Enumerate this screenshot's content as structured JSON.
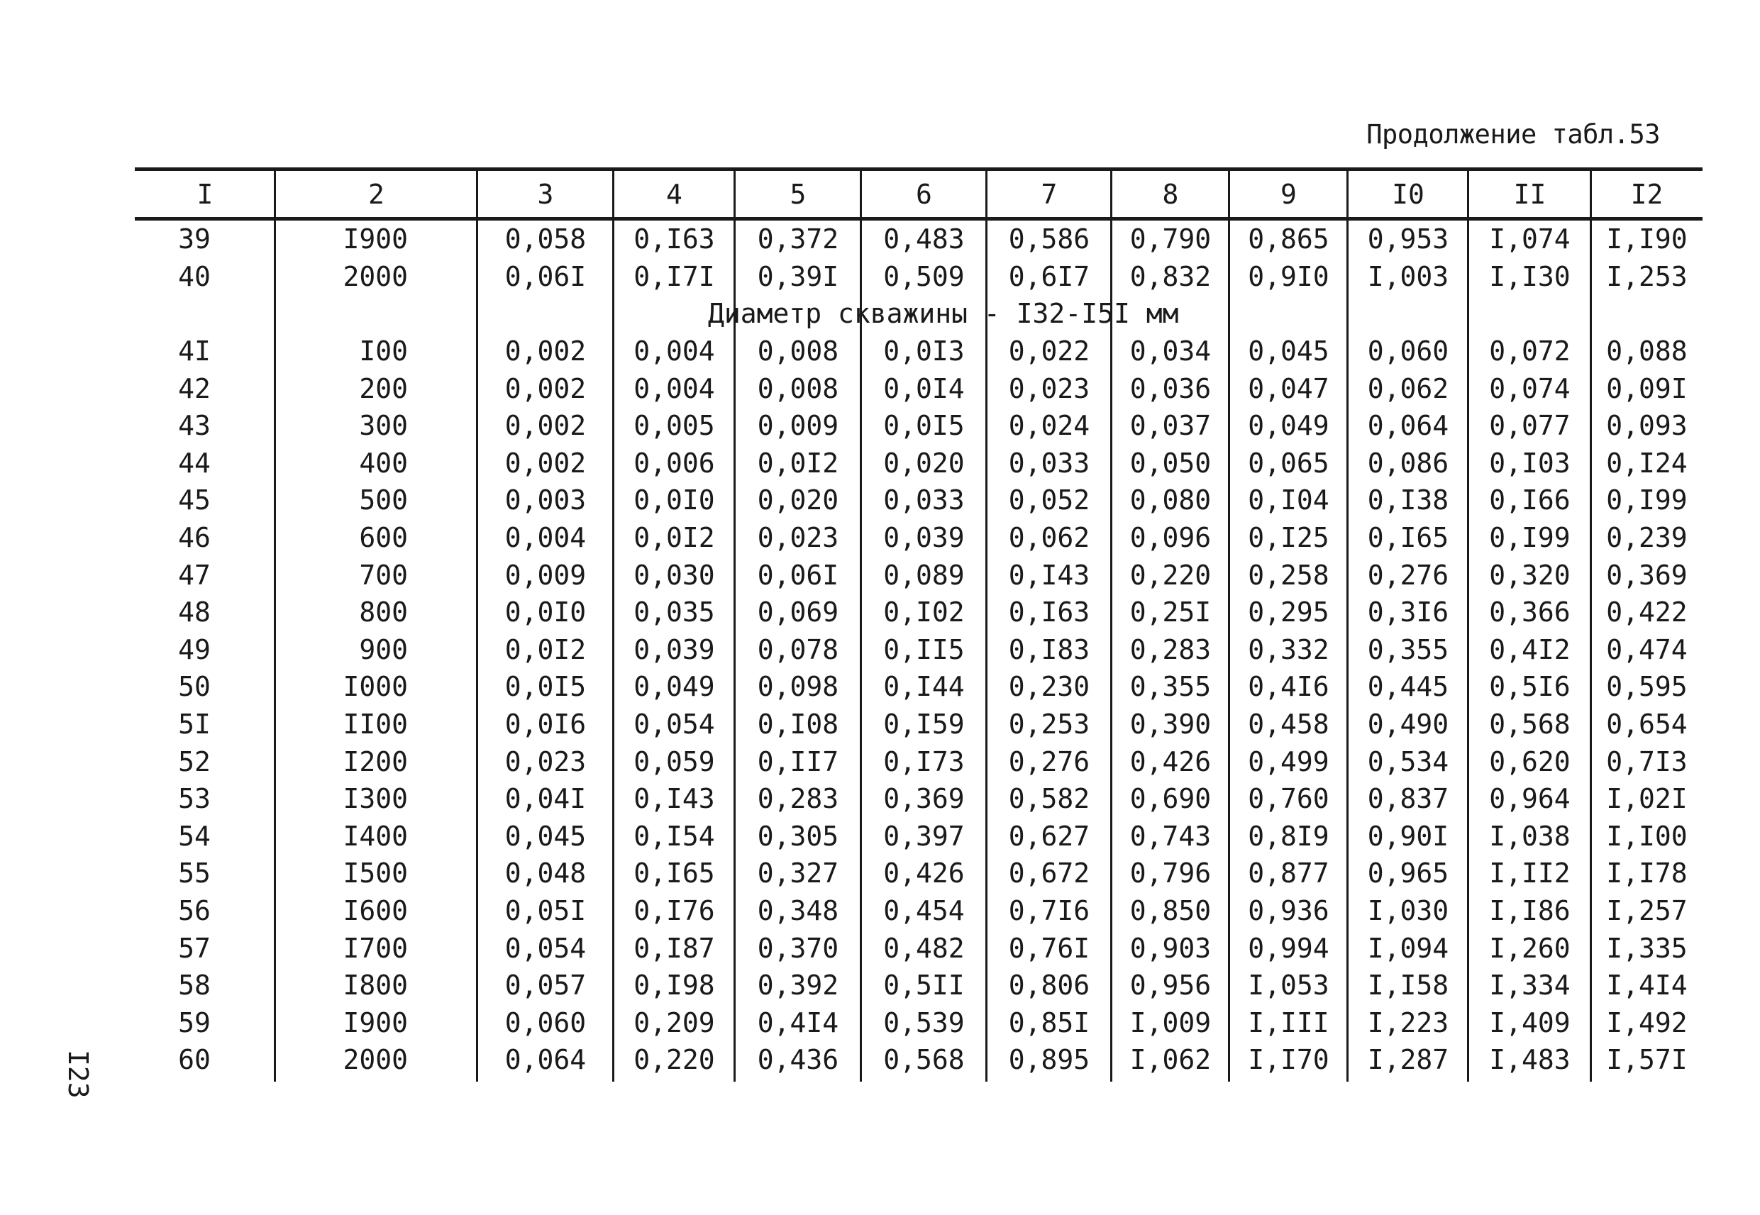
{
  "caption": "Продолжение табл.53",
  "page_number": "I23",
  "header": [
    "I",
    "2",
    "3",
    "4",
    "5",
    "6",
    "7",
    "8",
    "9",
    "I0",
    "II",
    "I2"
  ],
  "rows_before": [
    [
      "39",
      "I900",
      "0,058",
      "0,I63",
      "0,372",
      "0,483",
      "0,586",
      "0,790",
      "0,865",
      "0,953",
      "I,074",
      "I,I90"
    ],
    [
      "40",
      "2000",
      "0,06I",
      "0,I7I",
      "0,39I",
      "0,509",
      "0,6I7",
      "0,832",
      "0,9I0",
      "I,003",
      "I,I30",
      "I,253"
    ]
  ],
  "group_heading": "Диаметр скважины - I32-I5I мм",
  "rows_after": [
    [
      "4I",
      "I00",
      "0,002",
      "0,004",
      "0,008",
      "0,0I3",
      "0,022",
      "0,034",
      "0,045",
      "0,060",
      "0,072",
      "0,088"
    ],
    [
      "42",
      "200",
      "0,002",
      "0,004",
      "0,008",
      "0,0I4",
      "0,023",
      "0,036",
      "0,047",
      "0,062",
      "0,074",
      "0,09I"
    ],
    [
      "43",
      "300",
      "0,002",
      "0,005",
      "0,009",
      "0,0I5",
      "0,024",
      "0,037",
      "0,049",
      "0,064",
      "0,077",
      "0,093"
    ],
    [
      "44",
      "400",
      "0,002",
      "0,006",
      "0,0I2",
      "0,020",
      "0,033",
      "0,050",
      "0,065",
      "0,086",
      "0,I03",
      "0,I24"
    ],
    [
      "45",
      "500",
      "0,003",
      "0,0I0",
      "0,020",
      "0,033",
      "0,052",
      "0,080",
      "0,I04",
      "0,I38",
      "0,I66",
      "0,I99"
    ],
    [
      "46",
      "600",
      "0,004",
      "0,0I2",
      "0,023",
      "0,039",
      "0,062",
      "0,096",
      "0,I25",
      "0,I65",
      "0,I99",
      "0,239"
    ],
    [
      "47",
      "700",
      "0,009",
      "0,030",
      "0,06I",
      "0,089",
      "0,I43",
      "0,220",
      "0,258",
      "0,276",
      "0,320",
      "0,369"
    ],
    [
      "48",
      "800",
      "0,0I0",
      "0,035",
      "0,069",
      "0,I02",
      "0,I63",
      "0,25I",
      "0,295",
      "0,3I6",
      "0,366",
      "0,422"
    ],
    [
      "49",
      "900",
      "0,0I2",
      "0,039",
      "0,078",
      "0,II5",
      "0,I83",
      "0,283",
      "0,332",
      "0,355",
      "0,4I2",
      "0,474"
    ],
    [
      "50",
      "I000",
      "0,0I5",
      "0,049",
      "0,098",
      "0,I44",
      "0,230",
      "0,355",
      "0,4I6",
      "0,445",
      "0,5I6",
      "0,595"
    ],
    [
      "5I",
      "II00",
      "0,0I6",
      "0,054",
      "0,I08",
      "0,I59",
      "0,253",
      "0,390",
      "0,458",
      "0,490",
      "0,568",
      "0,654"
    ],
    [
      "52",
      "I200",
      "0,023",
      "0,059",
      "0,II7",
      "0,I73",
      "0,276",
      "0,426",
      "0,499",
      "0,534",
      "0,620",
      "0,7I3"
    ],
    [
      "53",
      "I300",
      "0,04I",
      "0,I43",
      "0,283",
      "0,369",
      "0,582",
      "0,690",
      "0,760",
      "0,837",
      "0,964",
      "I,02I"
    ],
    [
      "54",
      "I400",
      "0,045",
      "0,I54",
      "0,305",
      "0,397",
      "0,627",
      "0,743",
      "0,8I9",
      "0,90I",
      "I,038",
      "I,I00"
    ],
    [
      "55",
      "I500",
      "0,048",
      "0,I65",
      "0,327",
      "0,426",
      "0,672",
      "0,796",
      "0,877",
      "0,965",
      "I,II2",
      "I,I78"
    ],
    [
      "56",
      "I600",
      "0,05I",
      "0,I76",
      "0,348",
      "0,454",
      "0,7I6",
      "0,850",
      "0,936",
      "I,030",
      "I,I86",
      "I,257"
    ],
    [
      "57",
      "I700",
      "0,054",
      "0,I87",
      "0,370",
      "0,482",
      "0,76I",
      "0,903",
      "0,994",
      "I,094",
      "I,260",
      "I,335"
    ],
    [
      "58",
      "I800",
      "0,057",
      "0,I98",
      "0,392",
      "0,5II",
      "0,806",
      "0,956",
      "I,053",
      "I,I58",
      "I,334",
      "I,4I4"
    ],
    [
      "59",
      "I900",
      "0,060",
      "0,209",
      "0,4I4",
      "0,539",
      "0,85I",
      "I,009",
      "I,III",
      "I,223",
      "I,409",
      "I,492"
    ],
    [
      "60",
      "2000",
      "0,064",
      "0,220",
      "0,436",
      "0,568",
      "0,895",
      "I,062",
      "I,I70",
      "I,287",
      "I,483",
      "I,57I"
    ]
  ]
}
